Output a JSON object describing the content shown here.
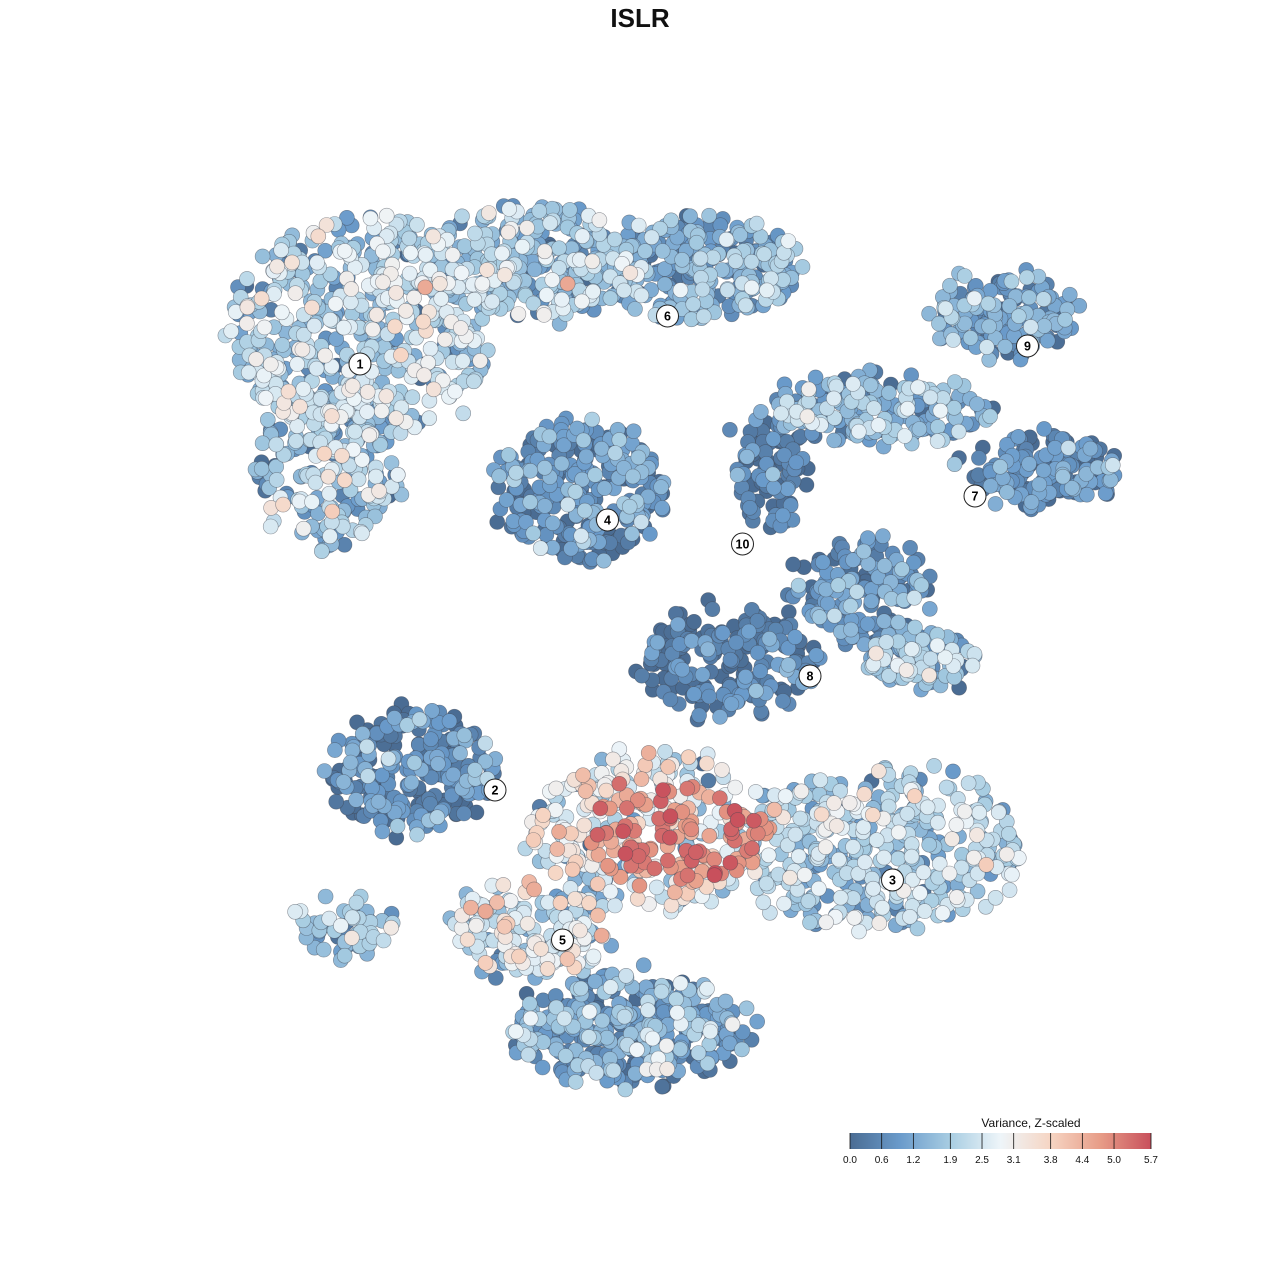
{
  "chart_data": {
    "type": "scatter",
    "title": "ISLR",
    "xlabel": "",
    "ylabel": "",
    "color_scale": {
      "title": "Variance, Z-scaled",
      "min": 0.0,
      "max": 5.7,
      "ticks": [
        0.0,
        0.6,
        1.2,
        1.9,
        2.5,
        3.1,
        3.8,
        4.4,
        5.0,
        5.7
      ],
      "tick_labels": [
        "0.0",
        "0.6",
        "1.2",
        "1.9",
        "2.5",
        "3.1",
        "3.8",
        "4.4",
        "5.0",
        "5.7"
      ],
      "colors": [
        "#4a6c93",
        "#6a9bcb",
        "#a8cde2",
        "#eef5f9",
        "#f6d5c3",
        "#e79c87",
        "#c8505c"
      ]
    },
    "legend_placement": "bottom-right",
    "grid": false,
    "clusters": [
      {
        "label": "1",
        "x": -3.6,
        "y": 4.6,
        "mean": 1.9
      },
      {
        "label": "2",
        "x": -1.8,
        "y": -2.5,
        "mean": 0.6
      },
      {
        "label": "3",
        "x": 3.5,
        "y": -4.0,
        "mean": 1.9
      },
      {
        "label": "4",
        "x": -0.3,
        "y": 2.0,
        "mean": 0.5
      },
      {
        "label": "5",
        "x": -0.9,
        "y": -5.0,
        "mean": 1.0
      },
      {
        "label": "6",
        "x": 0.5,
        "y": 5.4,
        "mean": 1.4
      },
      {
        "label": "7",
        "x": 4.6,
        "y": 2.4,
        "mean": 1.0
      },
      {
        "label": "8",
        "x": 2.4,
        "y": -0.6,
        "mean": 0.4
      },
      {
        "label": "9",
        "x": 5.3,
        "y": 4.9,
        "mean": 1.0
      },
      {
        "label": "10",
        "x": 1.5,
        "y": 1.6,
        "mean": 0.4
      }
    ]
  }
}
